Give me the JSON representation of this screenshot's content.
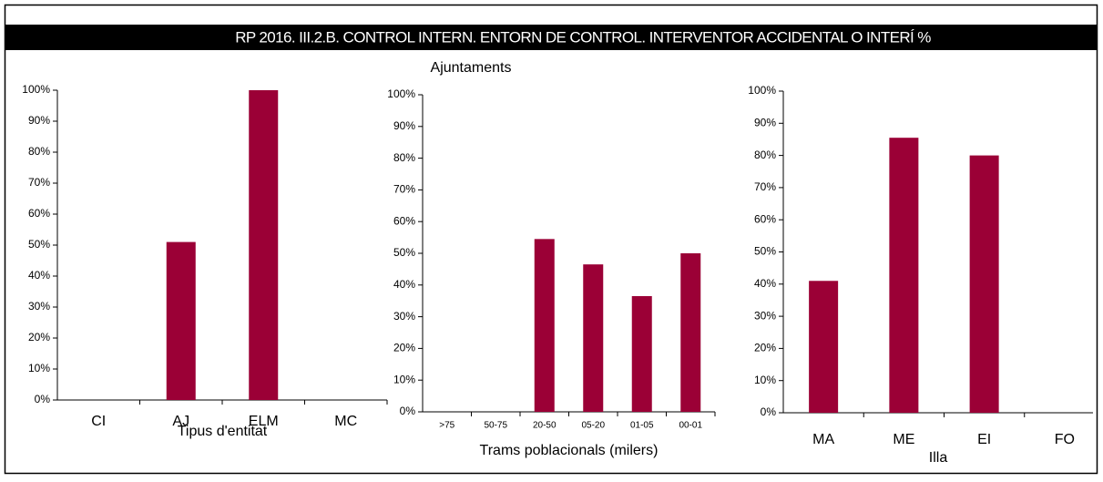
{
  "title": "RP 2016. III.2.B. CONTROL INTERN. ENTORN DE CONTROL. INTERVENTOR ACCIDENTAL O INTERÍ %",
  "chart_data": [
    {
      "type": "bar",
      "xlabel": "Tipus d'entitat",
      "color": "#9b0036",
      "categories": [
        "CI",
        "AJ",
        "ELM",
        "MC"
      ],
      "values": [
        0,
        51,
        100,
        0
      ],
      "ylim": [
        0,
        100
      ],
      "yticks": [
        {
          "value": 0,
          "label": "0%"
        },
        {
          "value": 10,
          "label": "10%"
        },
        {
          "value": 20,
          "label": "20%"
        },
        {
          "value": 30,
          "label": "30%"
        },
        {
          "value": 40,
          "label": "40%"
        },
        {
          "value": 50,
          "label": "50%"
        },
        {
          "value": 60,
          "label": "60%"
        },
        {
          "value": 70,
          "label": "70%"
        },
        {
          "value": 80,
          "label": "80%"
        },
        {
          "value": 90,
          "label": "90%"
        },
        {
          "value": 100,
          "label": "100%"
        }
      ]
    },
    {
      "type": "bar",
      "title": "Ajuntaments",
      "xlabel": "Trams poblacionals (milers)",
      "color": "#9b0036",
      "categories": [
        ">75",
        "50-75",
        "20-50",
        "05-20",
        "01-05",
        "00-01"
      ],
      "values": [
        0,
        0,
        54.5,
        46.5,
        36.5,
        50
      ],
      "ylim": [
        0,
        100
      ],
      "yticks": [
        {
          "value": 0,
          "label": "0%"
        },
        {
          "value": 10,
          "label": "10%"
        },
        {
          "value": 20,
          "label": "20%"
        },
        {
          "value": 30,
          "label": "30%"
        },
        {
          "value": 40,
          "label": "40%"
        },
        {
          "value": 50,
          "label": "50%"
        },
        {
          "value": 60,
          "label": "60%"
        },
        {
          "value": 70,
          "label": "70%"
        },
        {
          "value": 80,
          "label": "80%"
        },
        {
          "value": 90,
          "label": "90%"
        },
        {
          "value": 100,
          "label": "100%"
        }
      ]
    },
    {
      "type": "bar",
      "xlabel": "Illa",
      "color": "#9b0036",
      "categories": [
        "MA",
        "ME",
        "EI",
        "FO"
      ],
      "values": [
        41,
        85.5,
        80,
        0
      ],
      "ylim": [
        0,
        100
      ],
      "yticks": [
        {
          "value": 0,
          "label": "0%"
        },
        {
          "value": 10,
          "label": "10%"
        },
        {
          "value": 20,
          "label": "20%"
        },
        {
          "value": 30,
          "label": "30%"
        },
        {
          "value": 40,
          "label": "40%"
        },
        {
          "value": 50,
          "label": "50%"
        },
        {
          "value": 60,
          "label": "60%"
        },
        {
          "value": 70,
          "label": "70%"
        },
        {
          "value": 80,
          "label": "80%"
        },
        {
          "value": 90,
          "label": "90%"
        },
        {
          "value": 100,
          "label": "100%"
        }
      ]
    }
  ]
}
